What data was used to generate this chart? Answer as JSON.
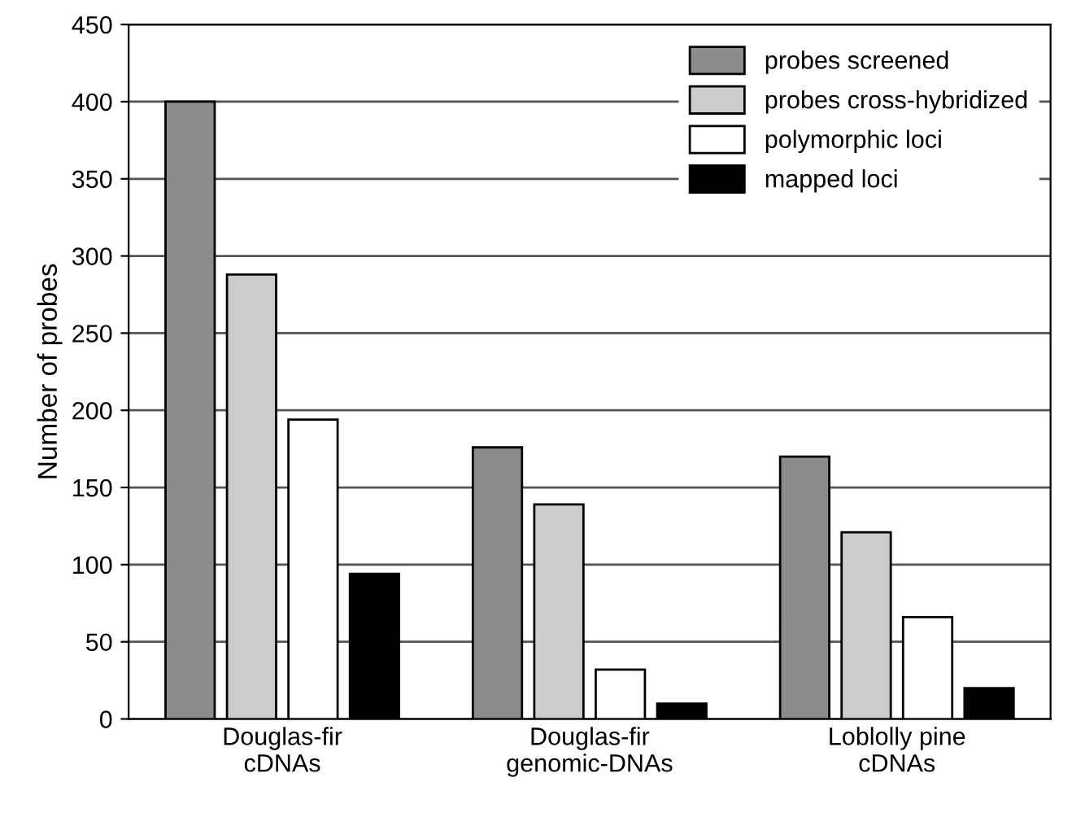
{
  "chart_data": {
    "type": "bar",
    "ylabel": "Number of probes",
    "categories": [
      "Douglas-fir\ncDNAs",
      "Douglas-fir\ngenomic-DNAs",
      "Loblolly pine\ncDNAs"
    ],
    "series": [
      {
        "name": "probes screened",
        "color": "#8c8c8c",
        "values": [
          400,
          176,
          170
        ]
      },
      {
        "name": "probes cross-hybridized",
        "color": "#cccccc",
        "values": [
          288,
          139,
          121
        ]
      },
      {
        "name": "polymorphic loci",
        "color": "#ffffff",
        "values": [
          194,
          32,
          66
        ]
      },
      {
        "name": "mapped loci",
        "color": "#000000",
        "values": [
          94,
          10,
          20
        ]
      }
    ],
    "ylim": [
      0,
      450
    ],
    "yticks": [
      0,
      50,
      100,
      150,
      200,
      250,
      300,
      350,
      400,
      450
    ],
    "grid": "y",
    "legend": "top right"
  }
}
